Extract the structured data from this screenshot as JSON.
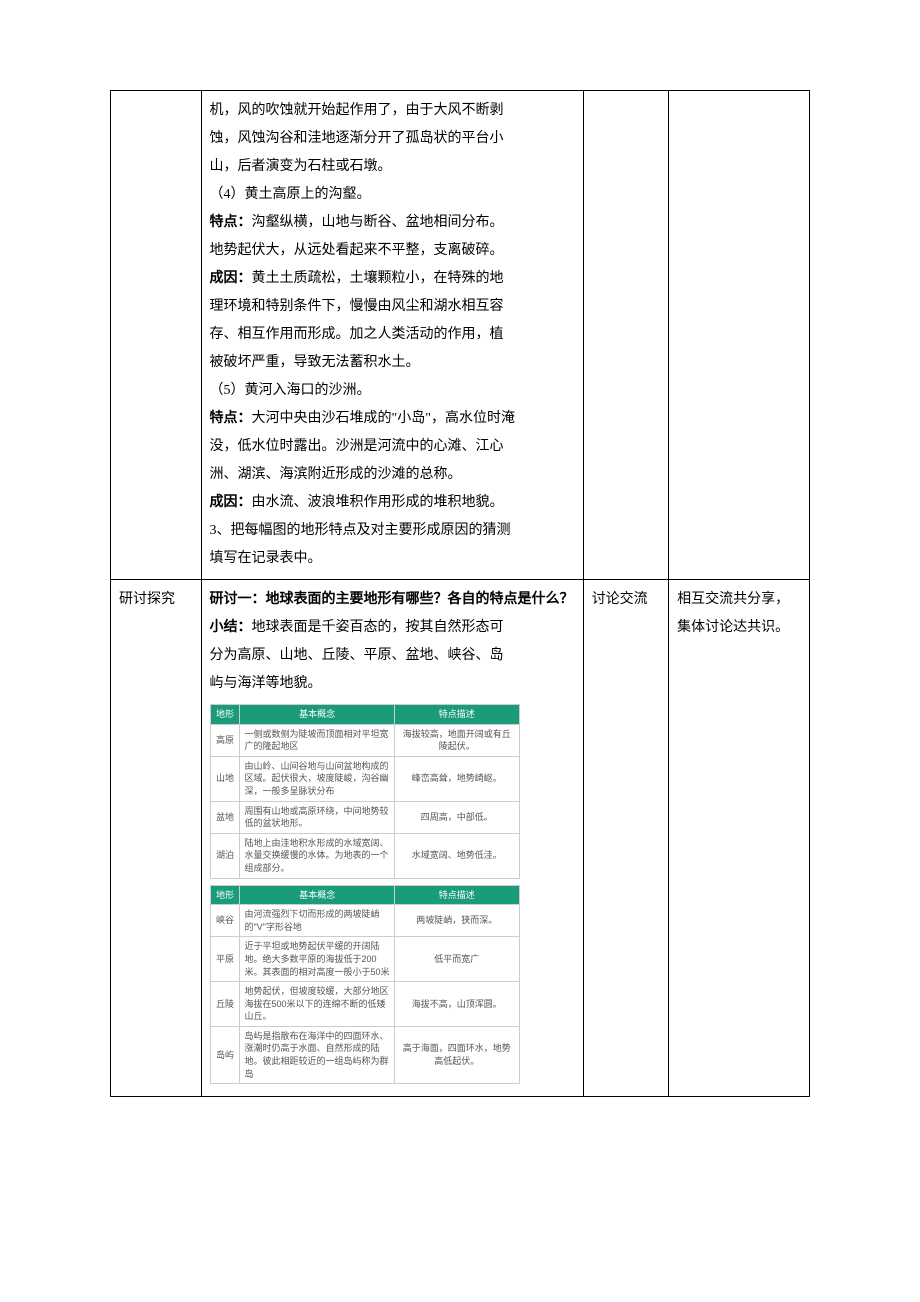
{
  "row1": {
    "col1": "",
    "col2": {
      "p1": "机，风的吹蚀就开始起作用了，由于大风不断剥",
      "p2": "蚀，风蚀沟谷和洼地逐渐分开了孤岛状的平台小",
      "p3": "山，后者演变为石柱或石墩。",
      "p4": "（4）黄土高原上的沟壑。",
      "p5_b": "特点：",
      "p5": "沟壑纵横，山地与断谷、盆地相间分布。",
      "p6": "地势起伏大，从远处看起来不平整，支离破碎。",
      "p7_b": "成因：",
      "p7": "黄土土质疏松，土壤颗粒小，在特殊的地",
      "p8": "理环境和特别条件下，慢慢由风尘和湖水相互容",
      "p9": "存、相互作用而形成。加之人类活动的作用，植",
      "p10": "被破坏严重，导致无法蓄积水土。",
      "p11": "（5）黄河入海口的沙洲。",
      "p12_b": "特点：",
      "p12": "大河中央由沙石堆成的\"小岛\"，高水位时淹",
      "p13": "没，低水位时露出。沙洲是河流中的心滩、江心",
      "p14": "洲、湖滨、海滨附近形成的沙滩的总称。",
      "p15_b": "成因：",
      "p15": "由水流、波浪堆积作用形成的堆积地貌。",
      "p16": "3、把每幅图的地形特点及对主要形成原因的猜测",
      "p17": "填写在记录表中。"
    },
    "col3": "",
    "col4": ""
  },
  "row2": {
    "col1": "研讨探究",
    "col2": {
      "heading_b": "研讨一：地球表面的主要地形有哪些？各自的特点是什么？",
      "sub_b": "小结：",
      "sub": "地球表面是千姿百态的，按其自然形态可",
      "sub2": "分为高原、山地、丘陵、平原、盆地、峡谷、岛",
      "sub3": "屿与海洋等地貌。"
    },
    "col3": "讨论交流",
    "col4": "相互交流共分享，集体讨论达共识。"
  },
  "table1": {
    "header": {
      "c1": "地形",
      "c2": "基本概念",
      "c3": "特点描述"
    },
    "rows": [
      {
        "c1": "高原",
        "c2": "一侧或数侧为陡坡而顶面相对平坦宽广的隆起地区",
        "c3": "海拔较高，地面开阔或有丘陵起伏。"
      },
      {
        "c1": "山地",
        "c2": "由山岭、山间谷地与山间盆地构成的区域。起伏很大，坡度陡峻，沟谷幽深，一般多呈脉状分布",
        "c3": "峰峦高耸，地势崎岖。"
      },
      {
        "c1": "盆地",
        "c2": "周围有山地或高原环绕，中间地势较低的盆状地形。",
        "c3": "四周高，中部低。"
      },
      {
        "c1": "湖泊",
        "c2": "陆地上由洼地积水形成的水域宽阔、水量交换缓慢的水体。为地表的一个组成部分。",
        "c3": "水域宽阔、地势低洼。"
      }
    ]
  },
  "table2": {
    "header": {
      "c1": "地形",
      "c2": "基本概念",
      "c3": "特点描述"
    },
    "rows": [
      {
        "c1": "峡谷",
        "c2": "由河流强烈下切而形成的两坡陡峭的\"V\"字形谷地",
        "c3": "两坡陡峭，狭而深。"
      },
      {
        "c1": "平原",
        "c2": "近于平坦或地势起伏平缓的开阔陆地。绝大多数平原的海拔低于200米。其表面的相对高度一般小于50米",
        "c3": "低平而宽广"
      },
      {
        "c1": "丘陵",
        "c2": "地势起伏，但坡度较缓，大部分地区海拔在500米以下的连绵不断的低矮山丘。",
        "c3": "海拔不高，山顶浑圆。"
      },
      {
        "c1": "岛屿",
        "c2": "岛屿是指散布在海洋中的四面环水、涨潮时仍高于水面、自然形成的陆地。彼此相距较近的一组岛屿称为群岛",
        "c3": "高于海面，四面环水，地势高低起伏。"
      }
    ]
  },
  "colors": {
    "table_header_bg": "#1a9b7a",
    "table_header_text": "#ffffff",
    "border_main": "#000000",
    "border_sub": "#cccccc",
    "text_sub": "#555555",
    "background": "#ffffff"
  }
}
